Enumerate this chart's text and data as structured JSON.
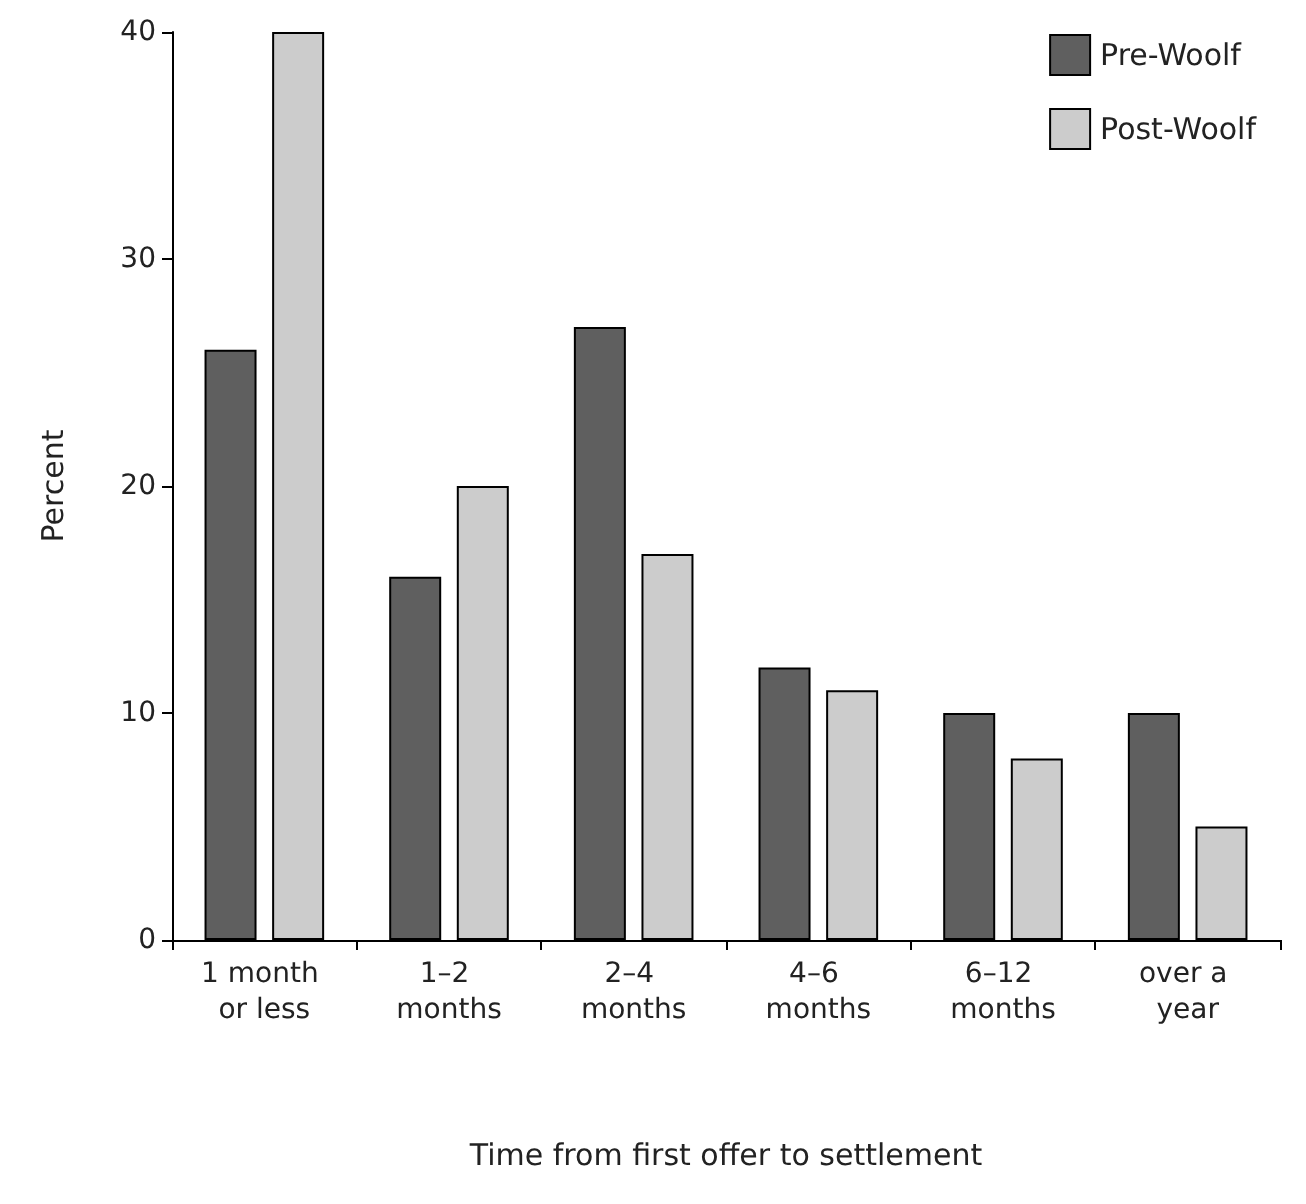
{
  "chart_data": {
    "type": "bar",
    "xlabel": "Time from first offer to settlement",
    "ylabel": "Percent",
    "categories": [
      "1 month or less",
      "1–2 months",
      "2–4 months",
      "4–6 months",
      "6–12 months",
      "over a year"
    ],
    "series": [
      {
        "name": "Pre-Woolf",
        "color": "#5f5f5f",
        "values": [
          26,
          16,
          27,
          12,
          10,
          10
        ]
      },
      {
        "name": "Post-Woolf",
        "color": "#cccccc",
        "values": [
          40,
          20,
          17,
          11,
          8,
          5
        ]
      }
    ],
    "ylim": [
      0,
      40
    ],
    "yticks": [
      0,
      10,
      20,
      30,
      40
    ],
    "grid": false,
    "legend": "top right"
  }
}
